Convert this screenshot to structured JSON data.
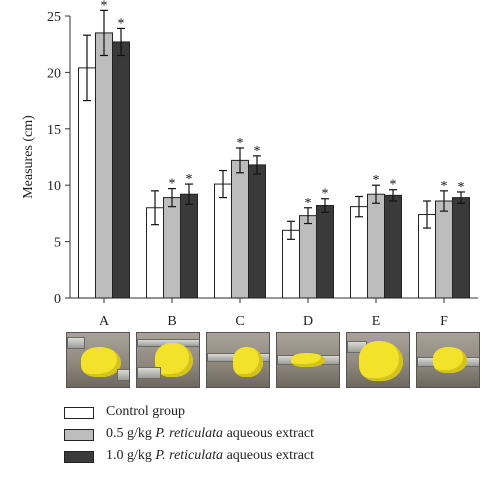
{
  "chart_data": {
    "type": "bar",
    "ylabel": "Measures (cm)",
    "ylim": [
      0,
      25
    ],
    "yticks": [
      0,
      5,
      10,
      15,
      20,
      25
    ],
    "categories": [
      "A",
      "B",
      "C",
      "D",
      "E",
      "F"
    ],
    "series": [
      {
        "name": "Control group",
        "color": "#ffffff",
        "values": [
          20.4,
          8.0,
          10.1,
          6.0,
          8.1,
          7.4
        ],
        "errors": [
          2.9,
          1.5,
          1.2,
          0.8,
          0.9,
          1.2
        ],
        "sig": [
          false,
          false,
          false,
          false,
          false,
          false
        ]
      },
      {
        "name": "0.5 g/kg P. reticulata aqueous extract",
        "color": "#bdbdbd",
        "values": [
          23.5,
          8.9,
          12.2,
          7.3,
          9.2,
          8.6
        ],
        "errors": [
          2.0,
          0.8,
          1.1,
          0.7,
          0.8,
          0.9
        ],
        "sig": [
          true,
          true,
          true,
          true,
          true,
          true
        ]
      },
      {
        "name": "1.0 g/kg P. reticulata aqueous extract",
        "color": "#3a3a3a",
        "values": [
          22.7,
          9.2,
          11.8,
          8.2,
          9.1,
          8.9
        ],
        "errors": [
          1.2,
          0.9,
          0.8,
          0.6,
          0.5,
          0.5
        ],
        "sig": [
          true,
          true,
          true,
          true,
          true,
          true
        ]
      }
    ],
    "significance_marker": "*"
  },
  "legend": {
    "items": [
      {
        "prefix": "Control group",
        "italic": "",
        "suffix": "",
        "color": "#ffffff"
      },
      {
        "prefix": "0.5 g/kg ",
        "italic": "P. reticulata",
        "suffix": " aqueous extract",
        "color": "#bdbdbd"
      },
      {
        "prefix": "1.0 g/kg ",
        "italic": "P. reticulata",
        "suffix": " aqueous extract",
        "color": "#3a3a3a"
      }
    ]
  }
}
